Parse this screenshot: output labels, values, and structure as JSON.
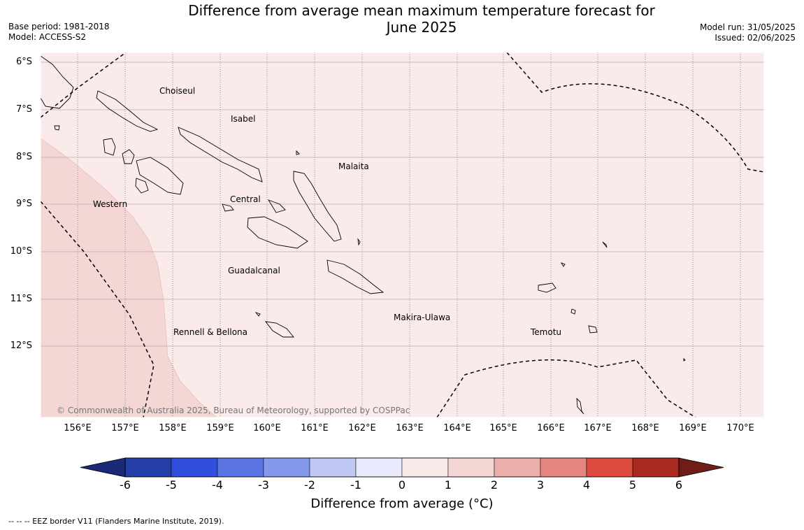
{
  "title_line1": "Difference from average mean maximum temperature forecast for",
  "title_line2": "June 2025",
  "base_period": "Base period: 1981-2018",
  "model": "Model: ACCESS-S2",
  "model_run": "Model run: 31/05/2025",
  "issued": "Issued: 02/06/2025",
  "lat_labels": [
    "6°S",
    "7°S",
    "8°S",
    "9°S",
    "10°S",
    "11°S",
    "12°S"
  ],
  "lon_labels": [
    "156°E",
    "157°E",
    "158°E",
    "159°E",
    "160°E",
    "161°E",
    "162°E",
    "163°E",
    "164°E",
    "165°E",
    "166°E",
    "167°E",
    "168°E",
    "169°E",
    "170°E"
  ],
  "regions": [
    "Choiseul",
    "Isabel",
    "Malaita",
    "Central",
    "Western",
    "Guadalcanal",
    "Makira-Ulawa",
    "Rennell & Bellona",
    "Temotu"
  ],
  "copyright": "© Commonwealth of Australia 2025, Bureau of Meteorology, supported by COSPPac",
  "colorbar": {
    "ticks": [
      "-6",
      "-5",
      "-4",
      "-3",
      "-2",
      "-1",
      "0",
      "1",
      "2",
      "3",
      "4",
      "5",
      "6"
    ],
    "colors": [
      "#253ea8",
      "#2f4fdc",
      "#5b74e4",
      "#8498ec",
      "#c0c8f4",
      "#e8eafc",
      "#fbeaea",
      "#f4d6d5",
      "#ecaeab",
      "#e48580",
      "#dc4a3e",
      "#a9281f"
    ],
    "under_color": "#1a2a78",
    "over_color": "#701c17",
    "label": "Difference from average (°C)"
  },
  "map_colors": {
    "background_0_to_1": "#fbeaea",
    "region_1_to_2": "#f4d6d5"
  },
  "footnote": "-- -- -- EEZ border V11 (Flanders Marine Institute, 2019)."
}
